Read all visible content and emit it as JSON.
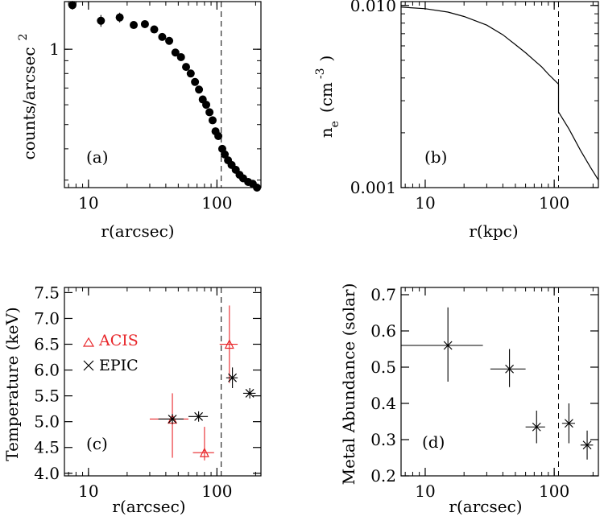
{
  "figure": {
    "panels": [
      "a",
      "b",
      "c",
      "d"
    ]
  },
  "chart_data": [
    {
      "panel": "a",
      "type": "scatter",
      "panel_label": "(a)",
      "xlabel": "r(arcsec)",
      "ylabel": "counts/arcsec",
      "ylabel_superscript": "2",
      "xscale": "log",
      "yscale": "log",
      "xlim": [
        6.5,
        220
      ],
      "ylim": [
        0.28,
        1.55
      ],
      "xticks": [
        {
          "value": 10,
          "label": "10"
        },
        {
          "value": 100,
          "label": "100"
        }
      ],
      "yticks": [
        {
          "value": 1,
          "label": "1"
        }
      ],
      "vline": 108,
      "series": [
        {
          "marker": "filled-circle",
          "color": "#000000",
          "points": [
            {
              "x": 7.5,
              "y": 1.5,
              "yerr": 0.06
            },
            {
              "x": 12.5,
              "y": 1.3,
              "yerr": 0.07
            },
            {
              "x": 17.5,
              "y": 1.34,
              "yerr": 0.06
            },
            {
              "x": 22.5,
              "y": 1.25,
              "yerr": 0.04
            },
            {
              "x": 27.5,
              "y": 1.26,
              "yerr": 0.03
            },
            {
              "x": 32.5,
              "y": 1.2,
              "yerr": 0.03
            },
            {
              "x": 37.5,
              "y": 1.12
            },
            {
              "x": 42.5,
              "y": 1.08
            },
            {
              "x": 47.5,
              "y": 0.97
            },
            {
              "x": 52.5,
              "y": 0.93
            },
            {
              "x": 57.5,
              "y": 0.85
            },
            {
              "x": 62.5,
              "y": 0.8
            },
            {
              "x": 67.5,
              "y": 0.74
            },
            {
              "x": 72.5,
              "y": 0.69
            },
            {
              "x": 77.5,
              "y": 0.63
            },
            {
              "x": 82.5,
              "y": 0.6
            },
            {
              "x": 87.5,
              "y": 0.56
            },
            {
              "x": 92.5,
              "y": 0.52
            },
            {
              "x": 97.5,
              "y": 0.47
            },
            {
              "x": 102.5,
              "y": 0.45
            },
            {
              "x": 110,
              "y": 0.4
            },
            {
              "x": 115,
              "y": 0.38
            },
            {
              "x": 122,
              "y": 0.36
            },
            {
              "x": 130,
              "y": 0.345
            },
            {
              "x": 140,
              "y": 0.33
            },
            {
              "x": 150,
              "y": 0.315
            },
            {
              "x": 160,
              "y": 0.305
            },
            {
              "x": 175,
              "y": 0.295
            },
            {
              "x": 190,
              "y": 0.29
            },
            {
              "x": 205,
              "y": 0.28
            }
          ]
        }
      ]
    },
    {
      "panel": "b",
      "type": "line",
      "panel_label": "(b)",
      "xlabel": "r(kpc)",
      "ylabel": "n",
      "ylabel_subscript": "e",
      "ylabel_units": "(cm",
      "ylabel_units_superscript": "-3",
      "ylabel_units_close": ")",
      "xscale": "log",
      "yscale": "log",
      "xlim": [
        6.5,
        220
      ],
      "ylim": [
        0.001,
        0.0105
      ],
      "xticks": [
        {
          "value": 10,
          "label": "10"
        },
        {
          "value": 100,
          "label": "100"
        }
      ],
      "yticks": [
        {
          "value": 0.01,
          "label": "0.010"
        },
        {
          "value": 0.001,
          "label": "0.001"
        }
      ],
      "vline": 108,
      "series": [
        {
          "color": "#000000",
          "x": [
            6.5,
            10,
            15,
            20,
            30,
            40,
            50,
            60,
            70,
            80,
            90,
            100,
            108,
            108,
            130,
            160,
            190,
            220
          ],
          "y": [
            0.0098,
            0.0096,
            0.0092,
            0.0087,
            0.0078,
            0.0069,
            0.0061,
            0.0055,
            0.005,
            0.0046,
            0.0042,
            0.0039,
            0.0037,
            0.0026,
            0.0021,
            0.0016,
            0.0013,
            0.0011
          ]
        }
      ]
    },
    {
      "panel": "c",
      "type": "scatter",
      "panel_label": "(c)",
      "xlabel": "r(arcsec)",
      "ylabel": "Temperature (keV)",
      "xscale": "log",
      "yscale": "linear",
      "xlim": [
        6.5,
        220
      ],
      "ylim": [
        3.95,
        7.6
      ],
      "xticks": [
        {
          "value": 10,
          "label": "10"
        },
        {
          "value": 100,
          "label": "100"
        }
      ],
      "yticks": [
        {
          "value": 4.0,
          "label": "4.0"
        },
        {
          "value": 4.5,
          "label": "4.5"
        },
        {
          "value": 5.0,
          "label": "5.0"
        },
        {
          "value": 5.5,
          "label": "5.5"
        },
        {
          "value": 6.0,
          "label": "6.0"
        },
        {
          "value": 6.5,
          "label": "6.5"
        },
        {
          "value": 7.0,
          "label": "7.0"
        },
        {
          "value": 7.5,
          "label": "7.5"
        }
      ],
      "vline": 108,
      "legend": [
        {
          "label": "ACIS",
          "marker": "triangle",
          "color": "#e8262a"
        },
        {
          "label": "EPIC",
          "marker": "x",
          "color": "#000000"
        }
      ],
      "series": [
        {
          "name": "ACIS",
          "marker": "triangle",
          "color": "#e8262a",
          "points": [
            {
              "x": 45,
              "y": 5.05,
              "xlo": 30,
              "xhi": 60,
              "ylo": 4.3,
              "yhi": 5.55
            },
            {
              "x": 80,
              "y": 4.4,
              "xlo": 65,
              "xhi": 95,
              "ylo": 4.25,
              "yhi": 4.9
            },
            {
              "x": 125,
              "y": 6.5,
              "xlo": 105,
              "xhi": 145,
              "ylo": 5.75,
              "yhi": 7.25
            }
          ]
        },
        {
          "name": "EPIC",
          "marker": "x",
          "color": "#000000",
          "points": [
            {
              "x": 45,
              "y": 5.05,
              "xlo": 35,
              "xhi": 55,
              "ylo": 4.95,
              "yhi": 5.15
            },
            {
              "x": 72,
              "y": 5.1,
              "xlo": 60,
              "xhi": 85,
              "ylo": 5.0,
              "yhi": 5.2
            },
            {
              "x": 132,
              "y": 5.85,
              "xlo": 118,
              "xhi": 145,
              "ylo": 5.65,
              "yhi": 6.05
            },
            {
              "x": 180,
              "y": 5.55,
              "xlo": 160,
              "xhi": 200,
              "ylo": 5.45,
              "yhi": 5.65
            }
          ]
        }
      ]
    },
    {
      "panel": "d",
      "type": "scatter",
      "panel_label": "(d)",
      "xlabel": "r(arcsec)",
      "ylabel": "Metal Abundance (solar)",
      "xscale": "log",
      "yscale": "linear",
      "xlim": [
        6.5,
        220
      ],
      "ylim": [
        0.2,
        0.72
      ],
      "xticks": [
        {
          "value": 10,
          "label": "10"
        },
        {
          "value": 100,
          "label": "100"
        }
      ],
      "yticks": [
        {
          "value": 0.2,
          "label": "0.2"
        },
        {
          "value": 0.3,
          "label": "0.3"
        },
        {
          "value": 0.4,
          "label": "0.4"
        },
        {
          "value": 0.5,
          "label": "0.5"
        },
        {
          "value": 0.6,
          "label": "0.6"
        },
        {
          "value": 0.7,
          "label": "0.7"
        }
      ],
      "vline": 108,
      "series": [
        {
          "marker": "x",
          "color": "#000000",
          "points": [
            {
              "x": 15,
              "y": 0.56,
              "xlo": 6.5,
              "xhi": 28,
              "ylo": 0.46,
              "yhi": 0.665
            },
            {
              "x": 45,
              "y": 0.495,
              "xlo": 32,
              "xhi": 60,
              "ylo": 0.445,
              "yhi": 0.55
            },
            {
              "x": 73,
              "y": 0.335,
              "xlo": 60,
              "xhi": 85,
              "ylo": 0.29,
              "yhi": 0.38
            },
            {
              "x": 130,
              "y": 0.345,
              "xlo": 115,
              "xhi": 145,
              "ylo": 0.29,
              "yhi": 0.4
            },
            {
              "x": 180,
              "y": 0.285,
              "xlo": 160,
              "xhi": 200,
              "ylo": 0.245,
              "yhi": 0.325
            }
          ]
        }
      ]
    }
  ]
}
